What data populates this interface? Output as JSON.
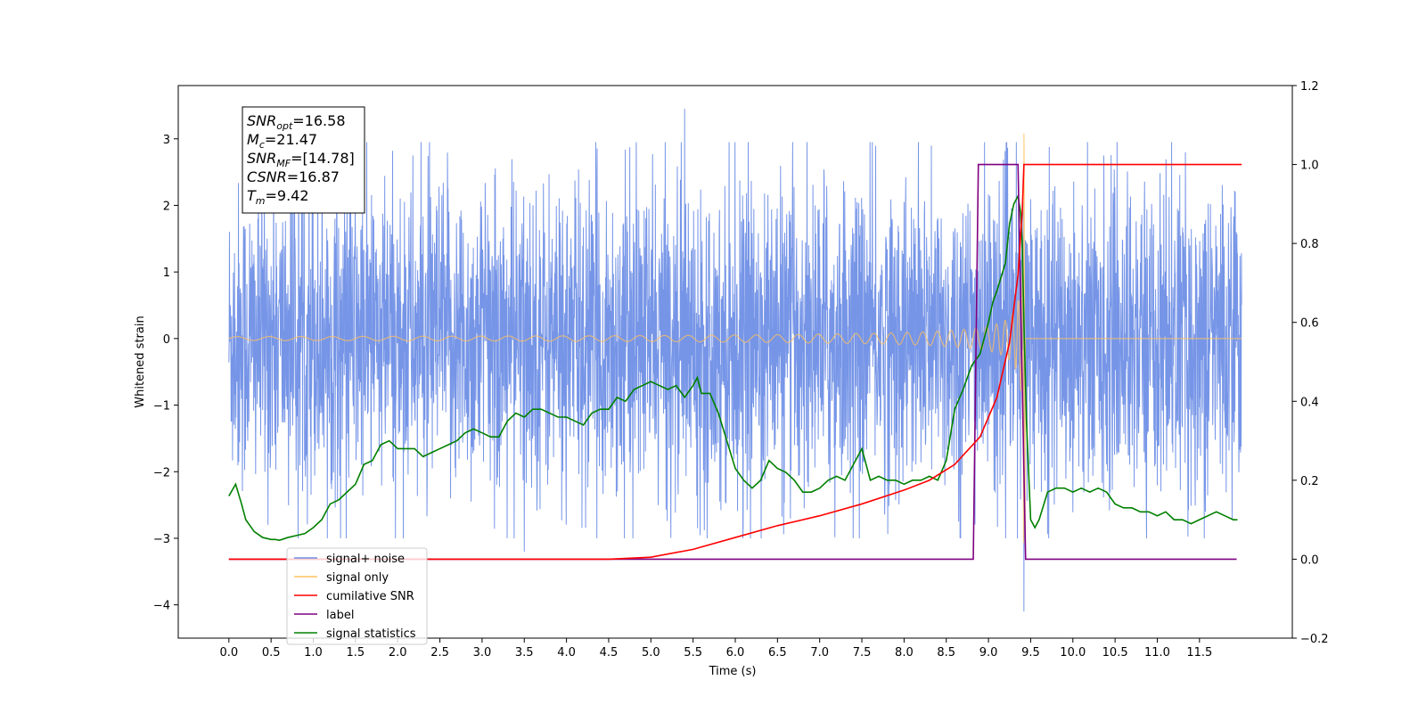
{
  "chart_data": {
    "type": "line",
    "xlabel": "Time (s)",
    "ylabel": "Whitened strain",
    "xlim": [
      -0.6,
      12.6
    ],
    "ylim": [
      -4.5,
      3.8
    ],
    "ylim_right": [
      -0.2,
      1.2
    ],
    "x_ticks": [
      "0.0",
      "0.5",
      "1.0",
      "1.5",
      "2.0",
      "2.5",
      "3.0",
      "3.5",
      "4.0",
      "4.5",
      "5.0",
      "5.5",
      "6.0",
      "6.5",
      "7.0",
      "7.5",
      "8.0",
      "8.5",
      "9.0",
      "9.5",
      "10.0",
      "10.5",
      "11.0",
      "11.5"
    ],
    "y_ticks": [
      "3",
      "2",
      "1",
      "0",
      "−1",
      "−2",
      "−3",
      "−4"
    ],
    "y_ticks_right": [
      "1.2",
      "1.0",
      "0.8",
      "0.6",
      "0.4",
      "0.2",
      "0.0",
      "−0.2"
    ],
    "info_box": {
      "lines": [
        {
          "sym": "SNR",
          "sub": "opt",
          "value": "=16.58"
        },
        {
          "sym": "M",
          "sub": "c",
          "value": "=21.47"
        },
        {
          "sym": "SNR",
          "sub": "MF",
          "value": "=[14.78]"
        },
        {
          "sym": "CSNR",
          "sub": "",
          "value": "=16.87"
        },
        {
          "sym": "T",
          "sub": "m",
          "value": "=9.42"
        }
      ]
    },
    "legend": {
      "placement": "lower-left",
      "entries": [
        {
          "label": "signal+ noise",
          "color": "#6f8fe6"
        },
        {
          "label": "signal only",
          "color": "#ffc060"
        },
        {
          "label": "cumilative SNR",
          "color": "#ff0000"
        },
        {
          "label": "label",
          "color": "#800080"
        },
        {
          "label": "signal statistics",
          "color": "#008000"
        }
      ]
    },
    "series": [
      {
        "name": "signal+ noise",
        "axis": "left",
        "color": "#6f8fe6",
        "t_range": [
          0.0,
          12.0
        ],
        "envelope_typical": 1.6,
        "peaks": [
          {
            "x": 5.4,
            "y": 3.45
          },
          {
            "x": 9.42,
            "y": -4.1
          },
          {
            "x": 3.5,
            "y": -3.2
          },
          {
            "x": 0.95,
            "y": 3.15
          }
        ]
      },
      {
        "name": "signal only",
        "axis": "left",
        "color": "#ffc060",
        "t_range": [
          0.0,
          12.0
        ],
        "merger_time": 9.42,
        "peak_amplitude": 3.08
      },
      {
        "name": "cumilative SNR",
        "axis": "right",
        "color": "#ff0000",
        "x": [
          0.0,
          4.5,
          5.0,
          5.5,
          6.0,
          6.5,
          7.0,
          7.5,
          8.0,
          8.3,
          8.6,
          8.9,
          9.1,
          9.25,
          9.35,
          9.4,
          9.42,
          9.43,
          12.0
        ],
        "values": [
          0.0,
          0.0,
          0.005,
          0.025,
          0.055,
          0.085,
          0.11,
          0.14,
          0.175,
          0.2,
          0.24,
          0.31,
          0.41,
          0.55,
          0.72,
          0.88,
          1.0,
          1.0,
          1.0
        ]
      },
      {
        "name": "label",
        "axis": "right",
        "color": "#800080",
        "x": [
          0.0,
          8.82,
          8.88,
          9.35,
          9.44,
          11.94
        ],
        "values": [
          0.0,
          0.0,
          1.0,
          1.0,
          0.0,
          0.0
        ]
      },
      {
        "name": "signal statistics",
        "axis": "right",
        "color": "#008000",
        "x": [
          0.0,
          0.08,
          0.15,
          0.2,
          0.3,
          0.4,
          0.5,
          0.55,
          0.6,
          0.7,
          0.8,
          0.9,
          1.0,
          1.1,
          1.2,
          1.3,
          1.4,
          1.5,
          1.6,
          1.7,
          1.8,
          1.9,
          2.0,
          2.1,
          2.2,
          2.3,
          2.4,
          2.5,
          2.6,
          2.7,
          2.8,
          2.9,
          3.0,
          3.1,
          3.2,
          3.3,
          3.4,
          3.5,
          3.6,
          3.7,
          3.8,
          3.9,
          4.0,
          4.1,
          4.2,
          4.3,
          4.4,
          4.5,
          4.6,
          4.7,
          4.8,
          4.9,
          5.0,
          5.1,
          5.2,
          5.3,
          5.4,
          5.5,
          5.55,
          5.6,
          5.7,
          5.8,
          5.9,
          6.0,
          6.1,
          6.2,
          6.3,
          6.4,
          6.5,
          6.6,
          6.7,
          6.8,
          6.9,
          7.0,
          7.1,
          7.2,
          7.3,
          7.4,
          7.5,
          7.6,
          7.7,
          7.8,
          7.9,
          8.0,
          8.1,
          8.2,
          8.3,
          8.4,
          8.5,
          8.6,
          8.7,
          8.8,
          8.9,
          9.0,
          9.05,
          9.1,
          9.2,
          9.25,
          9.3,
          9.35,
          9.38,
          9.4,
          9.42,
          9.45,
          9.5,
          9.55,
          9.6,
          9.7,
          9.8,
          9.9,
          10.0,
          10.1,
          10.2,
          10.3,
          10.4,
          10.5,
          10.6,
          10.7,
          10.8,
          10.9,
          11.0,
          11.1,
          11.2,
          11.3,
          11.4,
          11.5,
          11.6,
          11.7,
          11.8,
          11.9,
          11.95
        ],
        "values": [
          0.16,
          0.19,
          0.14,
          0.1,
          0.07,
          0.055,
          0.05,
          0.05,
          0.048,
          0.055,
          0.06,
          0.065,
          0.08,
          0.1,
          0.14,
          0.15,
          0.17,
          0.19,
          0.24,
          0.25,
          0.29,
          0.3,
          0.28,
          0.28,
          0.28,
          0.26,
          0.27,
          0.28,
          0.29,
          0.3,
          0.32,
          0.33,
          0.32,
          0.31,
          0.31,
          0.35,
          0.37,
          0.36,
          0.38,
          0.38,
          0.37,
          0.36,
          0.36,
          0.35,
          0.34,
          0.37,
          0.38,
          0.38,
          0.41,
          0.4,
          0.43,
          0.44,
          0.45,
          0.44,
          0.43,
          0.44,
          0.41,
          0.44,
          0.46,
          0.42,
          0.42,
          0.37,
          0.3,
          0.23,
          0.2,
          0.18,
          0.2,
          0.25,
          0.23,
          0.22,
          0.2,
          0.17,
          0.17,
          0.18,
          0.2,
          0.21,
          0.2,
          0.24,
          0.28,
          0.2,
          0.21,
          0.2,
          0.2,
          0.19,
          0.2,
          0.2,
          0.21,
          0.2,
          0.25,
          0.38,
          0.43,
          0.49,
          0.52,
          0.6,
          0.65,
          0.68,
          0.75,
          0.85,
          0.9,
          0.92,
          0.88,
          0.8,
          0.6,
          0.35,
          0.1,
          0.08,
          0.1,
          0.17,
          0.18,
          0.18,
          0.17,
          0.18,
          0.17,
          0.18,
          0.17,
          0.14,
          0.13,
          0.13,
          0.12,
          0.12,
          0.11,
          0.12,
          0.1,
          0.1,
          0.09,
          0.1,
          0.11,
          0.12,
          0.11,
          0.1,
          0.1
        ]
      }
    ]
  }
}
